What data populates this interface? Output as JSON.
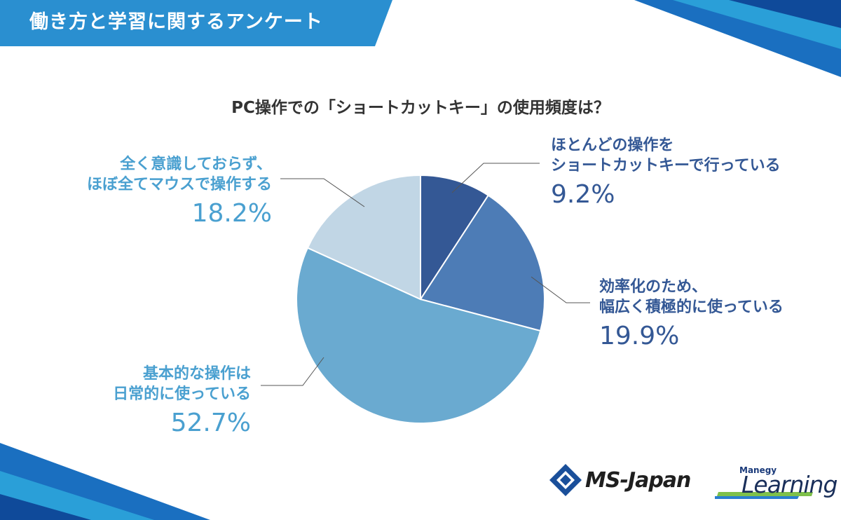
{
  "header": {
    "title": "働き方と学習に関するアンケート"
  },
  "colors": {
    "header_blue": "#2a8fd0",
    "slice_1": "#345895",
    "slice_2": "#4d7cb6",
    "slice_3": "#6aaad0",
    "slice_4": "#c1d6e5",
    "label_dark": "#345895",
    "label_light": "#4aa0d0"
  },
  "chart_data": {
    "type": "pie",
    "title": "PC操作での「ショートカットキー」の使用頻度は？",
    "slices": [
      {
        "label_lines": [
          "ほとんどの操作を",
          "ショートカットキーで行っている"
        ],
        "value": 9.2,
        "pct_text": "9.2%"
      },
      {
        "label_lines": [
          "効率化のため、",
          "幅広く積極的に使っている"
        ],
        "value": 19.9,
        "pct_text": "19.9%"
      },
      {
        "label_lines": [
          "基本的な操作は",
          "日常的に使っている"
        ],
        "value": 52.7,
        "pct_text": "52.7%"
      },
      {
        "label_lines": [
          "全く意識しておらず、",
          "ほぼ全てマウスで操作する"
        ],
        "value": 18.2,
        "pct_text": "18.2%"
      }
    ]
  },
  "logos": {
    "ms_japan": "MS-Japan",
    "learning_small": "Manegy",
    "learning_big": "Learning"
  }
}
